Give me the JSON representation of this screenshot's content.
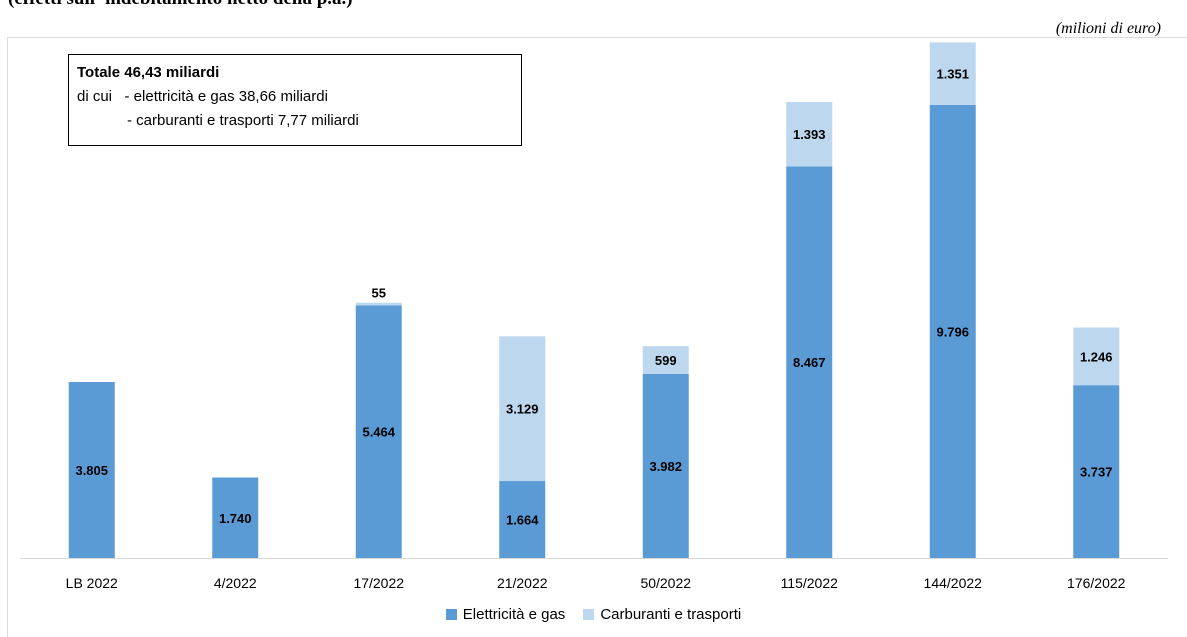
{
  "header": {
    "title": "(effetti sull' indebitamento netto della p.a.)",
    "units": "(milioni di euro)"
  },
  "info_box": {
    "total": "Totale 46,43 miliardi",
    "line1": "di cui   - elettricità e gas 38,66 miliardi",
    "line2": "            - carburanti e trasporti 7,77 miliardi"
  },
  "colors": {
    "elettricita": "#5b9bd5",
    "carburanti": "#bdd7ee",
    "axis": "#d9d9d9"
  },
  "chart_data": {
    "type": "bar",
    "stacked": true,
    "categories": [
      "LB 2022",
      "4/2022",
      "17/2022",
      "21/2022",
      "50/2022",
      "115/2022",
      "144/2022",
      "176/2022"
    ],
    "series": [
      {
        "name": "Elettricità e gas",
        "values": [
          3805,
          1740,
          5464,
          1664,
          3982,
          8467,
          9796,
          3737
        ],
        "labels": [
          "3.805",
          "1.740",
          "5.464",
          "1.664",
          "3.982",
          "8.467",
          "9.796",
          "3.737"
        ]
      },
      {
        "name": "Carburanti e trasporti",
        "values": [
          0,
          0,
          55,
          3129,
          599,
          1393,
          1351,
          1246
        ],
        "labels": [
          "",
          "",
          "55",
          "3.129",
          "599",
          "1.393",
          "1.351",
          "1.246"
        ]
      }
    ],
    "ylim": [
      0,
      11200
    ],
    "grid": false,
    "legend": "bottom"
  }
}
